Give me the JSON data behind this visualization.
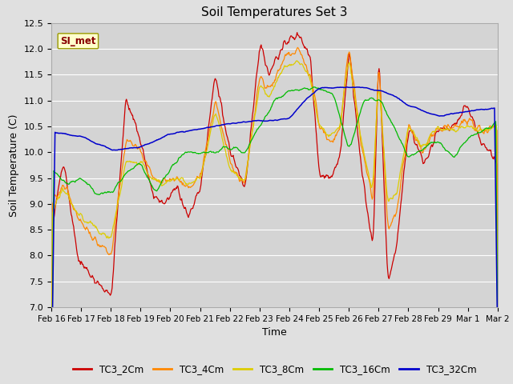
{
  "title": "Soil Temperatures Set 3",
  "xlabel": "Time",
  "ylabel": "Soil Temperature (C)",
  "ylim": [
    7.0,
    12.5
  ],
  "yticks": [
    7.0,
    7.5,
    8.0,
    8.5,
    9.0,
    9.5,
    10.0,
    10.5,
    11.0,
    11.5,
    12.0,
    12.5
  ],
  "xtick_labels": [
    "Feb 16",
    "Feb 17",
    "Feb 18",
    "Feb 19",
    "Feb 20",
    "Feb 21",
    "Feb 22",
    "Feb 23",
    "Feb 24",
    "Feb 25",
    "Feb 26",
    "Feb 27",
    "Feb 28",
    "Feb 29",
    "Mar 1",
    "Mar 2"
  ],
  "colors": {
    "TC3_2Cm": "#cc0000",
    "TC3_4Cm": "#ff8800",
    "TC3_8Cm": "#ddcc00",
    "TC3_16Cm": "#00bb00",
    "TC3_32Cm": "#0000cc"
  },
  "legend_label": "SI_met",
  "fig_bg": "#e0e0e0",
  "plot_bg": "#d4d4d4",
  "grid_color": "#ffffff"
}
